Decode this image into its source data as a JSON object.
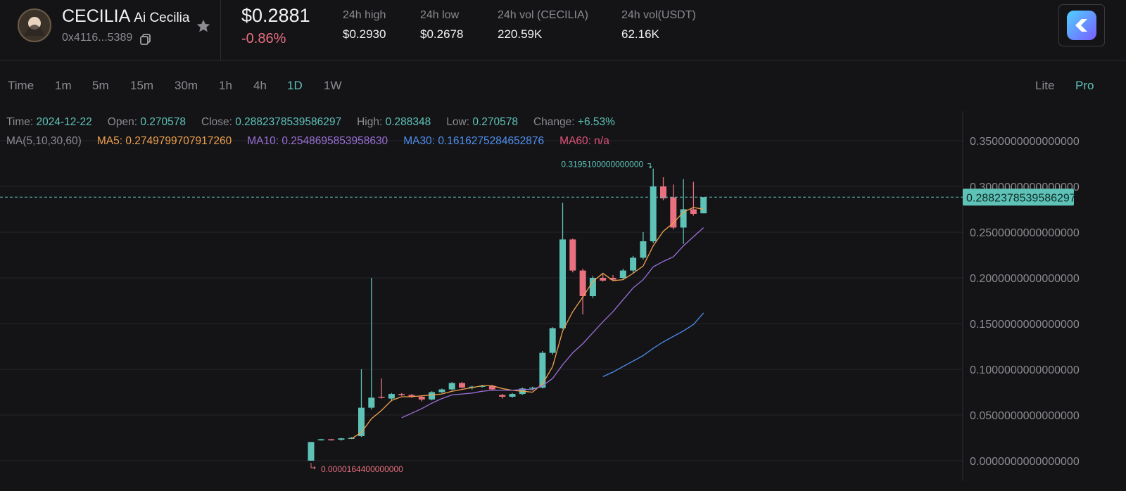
{
  "header": {
    "symbol": "CECILIA",
    "name": "Ai Cecilia",
    "address": "0x4116...5389",
    "price": "$0.2881",
    "change": "-0.86%",
    "stats": [
      {
        "label": "24h high",
        "value": "$0.2930"
      },
      {
        "label": "24h low",
        "value": "$0.2678"
      },
      {
        "label": "24h vol (CECILIA)",
        "value": "220.59K"
      },
      {
        "label": "24h vol(USDT)",
        "value": "62.16K"
      }
    ]
  },
  "timeframes": [
    "Time",
    "1m",
    "5m",
    "15m",
    "30m",
    "1h",
    "4h",
    "1D",
    "1W"
  ],
  "active_timeframe": "1D",
  "modes": [
    "Lite",
    "Pro"
  ],
  "active_mode": "Pro",
  "chart_data": {
    "type": "candlestick",
    "info": {
      "time_label": "Time:",
      "time": "2024-12-22",
      "open_label": "Open:",
      "close_label": "Close:",
      "high_label": "High:",
      "low_label": "Low:",
      "change_label": "Change:",
      "change": "+6.53%",
      "ma_label": "MA(5,10,30,60)"
    },
    "up_color": "#5ec2b7",
    "down_color": "#e9707f",
    "open": [
      0.0001,
      0.0225,
      0.0235,
      0.023,
      0.0245,
      0.027,
      0.058,
      0.07,
      0.068,
      0.073,
      0.072,
      0.07,
      0.067,
      0.075,
      0.078,
      0.085,
      0.08,
      0.081,
      0.082,
      0.072,
      0.07,
      0.073,
      0.079,
      0.08,
      0.118,
      0.145,
      0.242,
      0.208,
      0.18,
      0.2,
      0.2,
      0.2,
      0.208,
      0.222,
      0.24,
      0.3,
      0.288,
      0.255,
      0.275,
      0.270578
    ],
    "high": [
      0.0205,
      0.024,
      0.024,
      0.025,
      0.026,
      0.1,
      0.2,
      0.09,
      0.074,
      0.074,
      0.073,
      0.071,
      0.076,
      0.079,
      0.086,
      0.086,
      0.082,
      0.083,
      0.083,
      0.073,
      0.074,
      0.08,
      0.081,
      0.12,
      0.146,
      0.282,
      0.243,
      0.21,
      0.202,
      0.205,
      0.203,
      0.21,
      0.224,
      0.25,
      0.31951,
      0.31,
      0.302,
      0.308,
      0.305,
      0.288348
    ],
    "low": [
      1.644e-05,
      0.022,
      0.022,
      0.022,
      0.024,
      0.026,
      0.056,
      0.068,
      0.065,
      0.071,
      0.069,
      0.065,
      0.066,
      0.074,
      0.077,
      0.079,
      0.078,
      0.08,
      0.077,
      0.068,
      0.069,
      0.072,
      0.077,
      0.079,
      0.116,
      0.144,
      0.206,
      0.16,
      0.178,
      0.196,
      0.197,
      0.198,
      0.205,
      0.22,
      0.238,
      0.285,
      0.253,
      0.237,
      0.268,
      0.270578
    ],
    "close": [
      0.0205,
      0.0235,
      0.023,
      0.0245,
      0.025,
      0.058,
      0.069,
      0.069,
      0.073,
      0.072,
      0.07,
      0.067,
      0.075,
      0.078,
      0.085,
      0.08,
      0.081,
      0.082,
      0.078,
      0.07,
      0.073,
      0.079,
      0.08,
      0.118,
      0.145,
      0.242,
      0.208,
      0.18,
      0.2,
      0.197,
      0.198,
      0.208,
      0.222,
      0.24,
      0.3,
      0.287,
      0.255,
      0.275,
      0.27,
      0.2882378539586297
    ],
    "series": [
      {
        "name": "MA5:",
        "color": "#f0a04b",
        "value_label": "0.2749799707917260",
        "values": [
          null,
          null,
          null,
          null,
          0.024,
          0.031,
          0.046,
          0.055,
          0.066,
          0.07,
          0.07,
          0.071,
          0.072,
          0.073,
          0.076,
          0.078,
          0.08,
          0.082,
          0.082,
          0.079,
          0.077,
          0.076,
          0.075,
          0.084,
          0.103,
          0.142,
          0.163,
          0.179,
          0.196,
          0.205,
          0.197,
          0.198,
          0.205,
          0.213,
          0.235,
          0.251,
          0.26,
          0.272,
          0.277,
          0.274979970791726
        ]
      },
      {
        "name": "MA10:",
        "color": "#9b6fd6",
        "value_label": "0.2548695853958630",
        "values": [
          null,
          null,
          null,
          null,
          null,
          null,
          null,
          null,
          null,
          0.047,
          0.052,
          0.057,
          0.063,
          0.068,
          0.072,
          0.073,
          0.074,
          0.076,
          0.077,
          0.077,
          0.077,
          0.078,
          0.078,
          0.082,
          0.09,
          0.105,
          0.118,
          0.128,
          0.14,
          0.152,
          0.163,
          0.176,
          0.189,
          0.198,
          0.212,
          0.218,
          0.223,
          0.235,
          0.245,
          0.254869585395863
        ]
      },
      {
        "name": "MA30:",
        "color": "#4e8ff0",
        "value_label": "0.1616275284652876",
        "values": [
          null,
          null,
          null,
          null,
          null,
          null,
          null,
          null,
          null,
          null,
          null,
          null,
          null,
          null,
          null,
          null,
          null,
          null,
          null,
          null,
          null,
          null,
          null,
          null,
          null,
          null,
          null,
          null,
          null,
          0.092,
          0.097,
          0.103,
          0.109,
          0.115,
          0.123,
          0.13,
          0.136,
          0.142,
          0.149,
          0.1616275284652876
        ]
      },
      {
        "name": "MA60:",
        "color": "#e0527a",
        "value_label": "n/a",
        "values": [
          null,
          null,
          null,
          null,
          null,
          null,
          null,
          null,
          null,
          null,
          null,
          null,
          null,
          null,
          null,
          null,
          null,
          null,
          null,
          null,
          null,
          null,
          null,
          null,
          null,
          null,
          null,
          null,
          null,
          null,
          null,
          null,
          null,
          null,
          null,
          null,
          null,
          null,
          null,
          null
        ]
      }
    ],
    "last_price": 0.2882378539586297,
    "max_label": "0.3195100000000000",
    "min_label": "0.0000164400000000",
    "ylim": [
      -0.0223,
      0.3823
    ],
    "yticks": [
      {
        "value": 0,
        "label": "0.0000000000000000"
      },
      {
        "value": 0.05,
        "label": "0.0500000000000000"
      },
      {
        "value": 0.1,
        "label": "0.1000000000000000"
      },
      {
        "value": 0.15,
        "label": "0.1500000000000000"
      },
      {
        "value": 0.2,
        "label": "0.2000000000000000"
      },
      {
        "value": 0.25,
        "label": "0.2500000000000000"
      },
      {
        "value": 0.3,
        "label": "0.3000000000000000"
      },
      {
        "value": 0.35,
        "label": "0.3500000000000000"
      }
    ],
    "grid": true
  }
}
